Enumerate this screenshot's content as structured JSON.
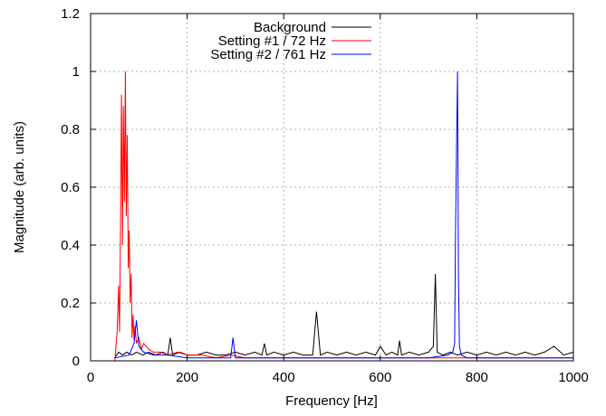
{
  "chart_data": {
    "type": "line",
    "title": "",
    "xlabel": "Frequency [Hz]",
    "ylabel": "Magnitude (arb. units)",
    "xlim": [
      0,
      1000
    ],
    "ylim": [
      0,
      1.2
    ],
    "x_ticks": [
      0,
      200,
      400,
      600,
      800,
      1000
    ],
    "x_tick_labels": [
      "0",
      "200",
      "400",
      "600",
      "800",
      "1000"
    ],
    "y_ticks": [
      0,
      0.2,
      0.4,
      0.6,
      0.8,
      1,
      1.2
    ],
    "y_tick_labels": [
      "0",
      "0.2",
      "0.4",
      "0.6",
      "0.8",
      "1",
      "1.2"
    ],
    "grid": true,
    "legend_position": "top-center",
    "series": [
      {
        "name": "Background",
        "color": "#000000",
        "x": [
          50,
          58,
          66,
          75,
          85,
          95,
          108,
          120,
          135,
          150,
          160,
          165,
          170,
          185,
          200,
          220,
          240,
          260,
          280,
          300,
          320,
          340,
          355,
          360,
          365,
          380,
          400,
          420,
          440,
          460,
          468,
          476,
          490,
          510,
          530,
          550,
          570,
          590,
          600,
          612,
          624,
          636,
          640,
          644,
          660,
          680,
          700,
          710,
          714,
          718,
          730,
          745,
          760,
          780,
          800,
          820,
          840,
          860,
          880,
          900,
          920,
          940,
          960,
          980,
          1000
        ],
        "y": [
          0.01,
          0.03,
          0.02,
          0.03,
          0.02,
          0.03,
          0.02,
          0.03,
          0.02,
          0.03,
          0.02,
          0.08,
          0.02,
          0.03,
          0.02,
          0.02,
          0.03,
          0.02,
          0.02,
          0.03,
          0.02,
          0.03,
          0.02,
          0.06,
          0.02,
          0.03,
          0.02,
          0.03,
          0.02,
          0.02,
          0.17,
          0.02,
          0.03,
          0.02,
          0.03,
          0.02,
          0.03,
          0.02,
          0.05,
          0.02,
          0.03,
          0.02,
          0.07,
          0.02,
          0.03,
          0.02,
          0.03,
          0.05,
          0.3,
          0.03,
          0.02,
          0.03,
          0.02,
          0.03,
          0.02,
          0.03,
          0.02,
          0.03,
          0.02,
          0.03,
          0.02,
          0.03,
          0.05,
          0.02,
          0.03
        ]
      },
      {
        "name": "Setting #1 / 72 Hz",
        "color": "#ff0000",
        "x": [
          50,
          55,
          58,
          60,
          62,
          64,
          66,
          68,
          70,
          72,
          74,
          76,
          78,
          80,
          82,
          84,
          86,
          88,
          90,
          92,
          95,
          100,
          105,
          110,
          120,
          130,
          145,
          160,
          180,
          200,
          230,
          260,
          290,
          320,
          360,
          400,
          450,
          500,
          550,
          600,
          700,
          800,
          900,
          1000
        ],
        "y": [
          0.0,
          0.1,
          0.26,
          0.1,
          0.45,
          0.92,
          0.4,
          0.88,
          0.55,
          1.0,
          0.5,
          0.78,
          0.32,
          0.45,
          0.2,
          0.3,
          0.08,
          0.16,
          0.07,
          0.12,
          0.06,
          0.08,
          0.04,
          0.06,
          0.04,
          0.03,
          0.03,
          0.02,
          0.03,
          0.02,
          0.02,
          0.01,
          0.02,
          0.01,
          0.01,
          0.01,
          0.01,
          0.01,
          0.01,
          0.01,
          0.01,
          0.01,
          0.01,
          0.01
        ]
      },
      {
        "name": "Setting #2 / 761 Hz",
        "color": "#0000ff",
        "x": [
          50,
          80,
          90,
          95,
          100,
          110,
          130,
          160,
          200,
          250,
          290,
          295,
          300,
          350,
          400,
          450,
          500,
          550,
          600,
          650,
          700,
          740,
          750,
          754,
          756,
          758,
          760,
          762,
          764,
          768,
          780,
          800,
          850,
          900,
          950,
          1000
        ],
        "y": [
          0.01,
          0.02,
          0.06,
          0.14,
          0.05,
          0.03,
          0.02,
          0.02,
          0.01,
          0.01,
          0.01,
          0.08,
          0.01,
          0.01,
          0.01,
          0.01,
          0.01,
          0.01,
          0.01,
          0.01,
          0.01,
          0.02,
          0.03,
          0.06,
          0.45,
          0.74,
          1.0,
          0.3,
          0.05,
          0.02,
          0.01,
          0.01,
          0.01,
          0.01,
          0.01,
          0.01
        ]
      }
    ]
  }
}
